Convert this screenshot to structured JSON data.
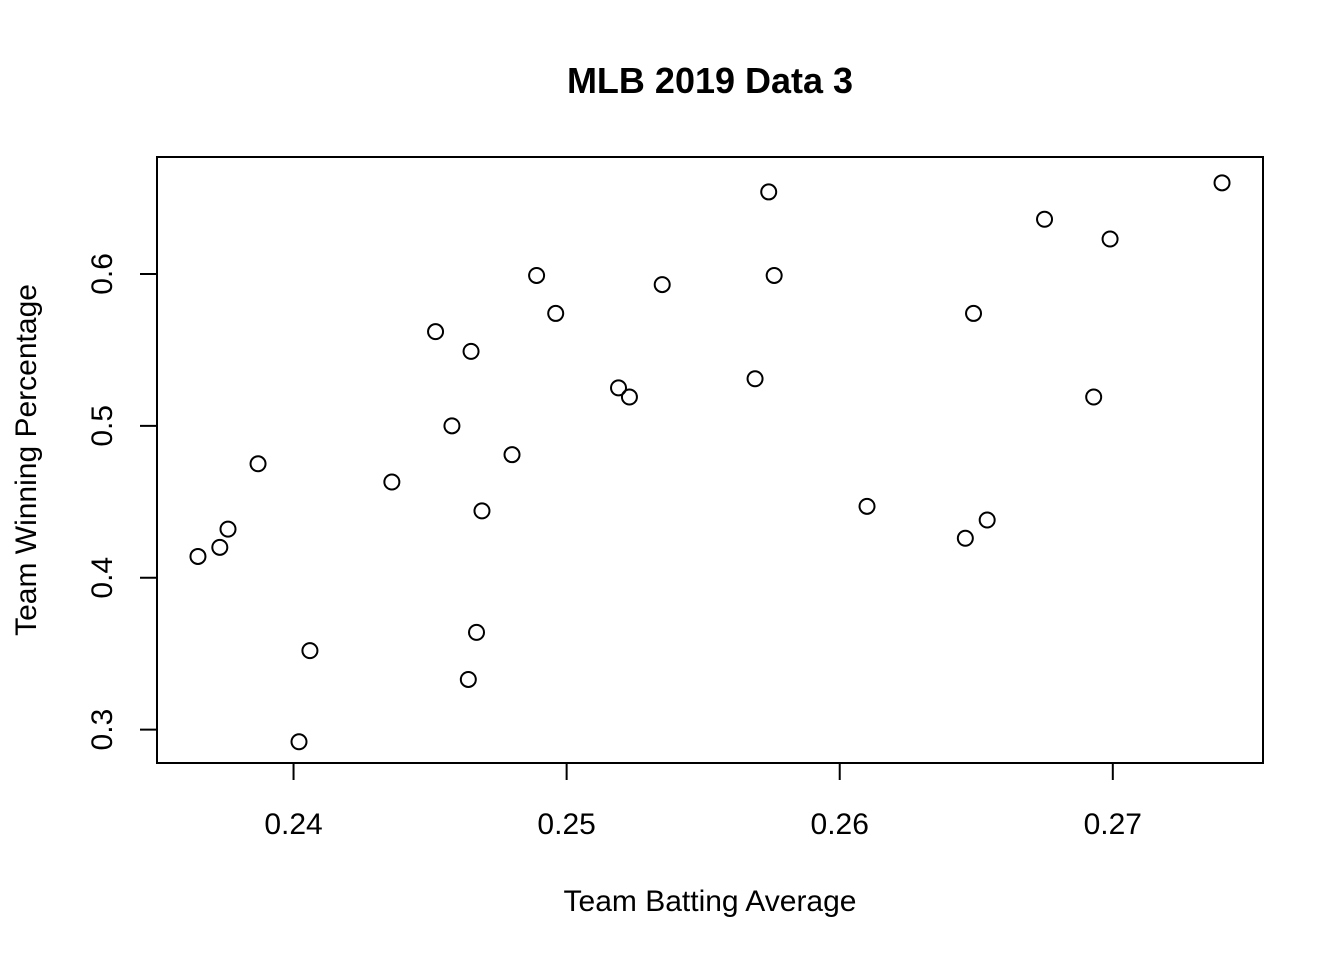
{
  "chart_data": {
    "type": "scatter",
    "title": "MLB 2019 Data 3",
    "xlabel": "Team Batting Average",
    "ylabel": "Team Winning Percentage",
    "xlim": [
      0.235,
      0.2755
    ],
    "ylim": [
      0.278,
      0.677
    ],
    "xticks": [
      0.24,
      0.25,
      0.26,
      0.27
    ],
    "xtick_labels": [
      "0.24",
      "0.25",
      "0.26",
      "0.27"
    ],
    "yticks": [
      0.3,
      0.4,
      0.5,
      0.6
    ],
    "ytick_labels": [
      "0.3",
      "0.4",
      "0.5",
      "0.6"
    ],
    "grid": false,
    "marker": "open-circle",
    "points": [
      {
        "x": 0.2365,
        "y": 0.414
      },
      {
        "x": 0.2373,
        "y": 0.42
      },
      {
        "x": 0.2376,
        "y": 0.432
      },
      {
        "x": 0.2387,
        "y": 0.475
      },
      {
        "x": 0.2402,
        "y": 0.292
      },
      {
        "x": 0.2406,
        "y": 0.352
      },
      {
        "x": 0.2436,
        "y": 0.463
      },
      {
        "x": 0.2452,
        "y": 0.562
      },
      {
        "x": 0.2458,
        "y": 0.5
      },
      {
        "x": 0.2464,
        "y": 0.333
      },
      {
        "x": 0.2465,
        "y": 0.549
      },
      {
        "x": 0.2467,
        "y": 0.364
      },
      {
        "x": 0.2469,
        "y": 0.444
      },
      {
        "x": 0.248,
        "y": 0.481
      },
      {
        "x": 0.2489,
        "y": 0.599
      },
      {
        "x": 0.2496,
        "y": 0.574
      },
      {
        "x": 0.2519,
        "y": 0.525
      },
      {
        "x": 0.2523,
        "y": 0.519
      },
      {
        "x": 0.2535,
        "y": 0.593
      },
      {
        "x": 0.2569,
        "y": 0.531
      },
      {
        "x": 0.2574,
        "y": 0.654
      },
      {
        "x": 0.2576,
        "y": 0.599
      },
      {
        "x": 0.261,
        "y": 0.447
      },
      {
        "x": 0.2646,
        "y": 0.426
      },
      {
        "x": 0.2649,
        "y": 0.574
      },
      {
        "x": 0.2654,
        "y": 0.438
      },
      {
        "x": 0.2675,
        "y": 0.636
      },
      {
        "x": 0.2693,
        "y": 0.519
      },
      {
        "x": 0.2699,
        "y": 0.623
      },
      {
        "x": 0.274,
        "y": 0.66
      }
    ]
  }
}
